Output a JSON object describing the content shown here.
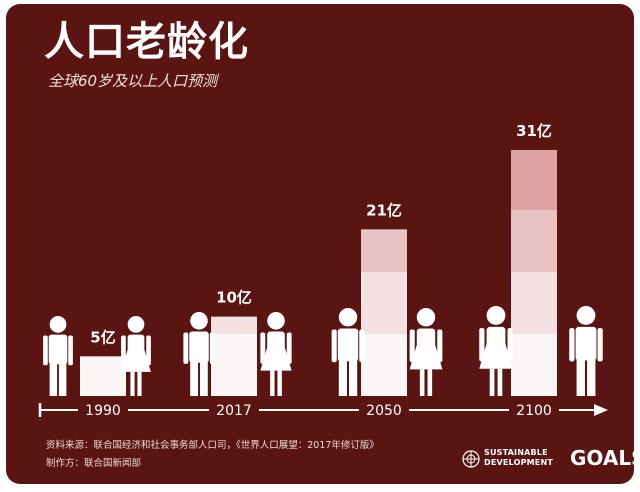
{
  "title": "人口老龄化",
  "subtitle": "全球60岁及以上人口预测",
  "chart_data": {
    "type": "bar",
    "unit": "亿",
    "categories": [
      "1990",
      "2017",
      "2050",
      "2100"
    ],
    "values": [
      5,
      10,
      21,
      31
    ],
    "value_labels": [
      "5亿",
      "10亿",
      "21亿",
      "31亿"
    ],
    "ylim": [
      0,
      31
    ],
    "axis": "timeline arrow",
    "grid": false,
    "legend": "none"
  },
  "footer": {
    "source": "资料来源：联合国经济和社会事务部人口司，《世界人口展望：2017年修订版》",
    "producer": "制作方：联合国新闻部"
  },
  "logo": {
    "line1": "SUSTAINABLE",
    "line2": "DEVELOPMENT",
    "goals": "GOALS"
  },
  "colors": {
    "background": "#5a1512",
    "text": "#ffffff",
    "bar_segments": [
      "#fbf6f6",
      "#f4e0e0",
      "#e9c3c4",
      "#dea3a5"
    ]
  }
}
